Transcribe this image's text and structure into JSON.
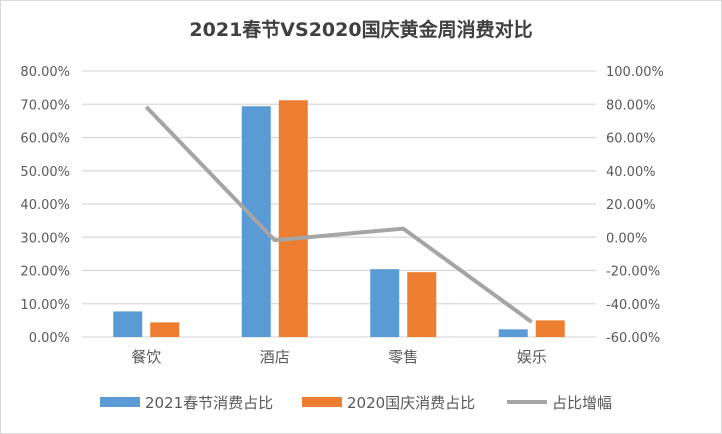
{
  "chart_data": {
    "type": "bar+line",
    "title": "2021春节VS2020国庆黄金周消费对比",
    "categories": [
      "餐饮",
      "酒店",
      "零售",
      "娱乐"
    ],
    "series": [
      {
        "name": "2021春节消费占比",
        "type": "bar",
        "axis": "left",
        "color": "#5b9bd5",
        "values": [
          7.7,
          69.4,
          20.4,
          2.3
        ]
      },
      {
        "name": "2020国庆消费占比",
        "type": "bar",
        "axis": "left",
        "color": "#ed7d31",
        "values": [
          4.4,
          71.2,
          19.5,
          5.0
        ]
      },
      {
        "name": "占比增幅",
        "type": "line",
        "axis": "right",
        "color": "#a5a5a5",
        "values": [
          78.4,
          -1.8,
          5.2,
          -51.0
        ]
      }
    ],
    "left_axis": {
      "ylim": [
        0,
        80
      ],
      "ticks": [
        "0.00%",
        "10.00%",
        "20.00%",
        "30.00%",
        "40.00%",
        "50.00%",
        "60.00%",
        "70.00%",
        "80.00%"
      ]
    },
    "right_axis": {
      "ylim": [
        -60,
        100
      ],
      "ticks": [
        "-60.00%",
        "-40.00%",
        "-20.00%",
        "0.00%",
        "20.00%",
        "40.00%",
        "60.00%",
        "80.00%",
        "100.00%"
      ]
    },
    "grid": true,
    "legend": "bottom"
  }
}
